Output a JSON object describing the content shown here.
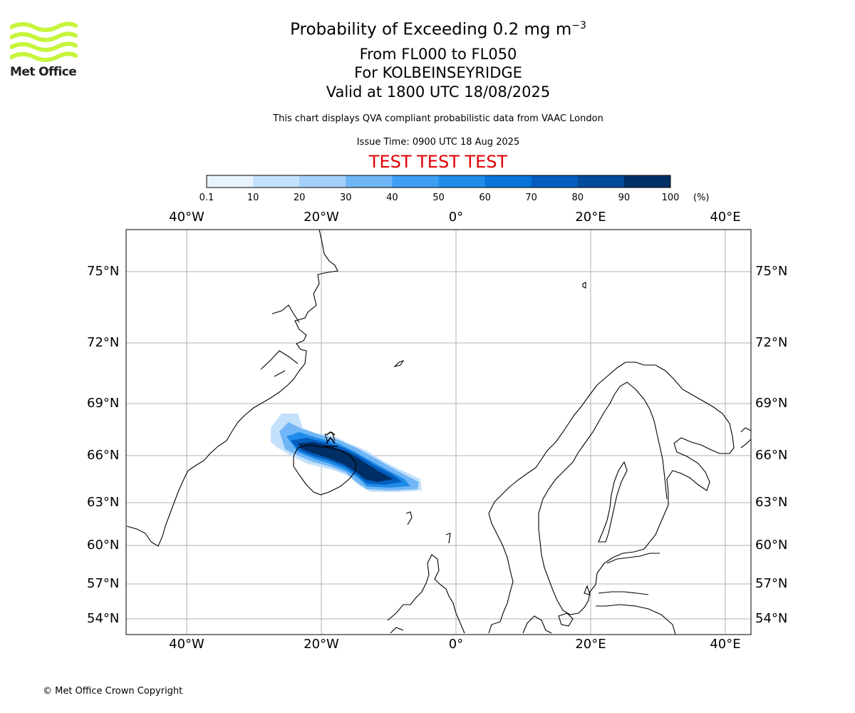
{
  "header": {
    "title_prefix": "Probability of Exceeding 0.2 mg m",
    "title_exponent": "−3",
    "flight_levels": "From FL000 to FL050",
    "volcano": "For KOLBEINSEYRIDGE",
    "valid_time": "Valid at 1800 UTC 18/08/2025",
    "description": "This chart displays QVA compliant probabilistic data from VAAC London",
    "issue_time": "Issue Time: 0900 UTC 18 Aug 2025",
    "test_banner": "TEST TEST TEST"
  },
  "logo": {
    "text": "Met Office",
    "color": "#c6f53c"
  },
  "colorbar": {
    "tick_labels": [
      "0.1",
      "10",
      "20",
      "30",
      "40",
      "50",
      "60",
      "70",
      "80",
      "90",
      "100"
    ],
    "unit": "(%)",
    "colors": [
      "#e8f3fe",
      "#c4e1fb",
      "#a3cff9",
      "#70b6f6",
      "#3d9ef3",
      "#1f8ce9",
      "#0874d9",
      "#035ebf",
      "#004b9c",
      "#002f66"
    ]
  },
  "map": {
    "lon_labels": [
      "40°W",
      "20°W",
      "0°",
      "20°E",
      "40°E"
    ],
    "lat_labels": [
      "75°N",
      "72°N",
      "69°N",
      "66°N",
      "63°N",
      "60°N",
      "57°N",
      "54°N"
    ]
  },
  "footer": {
    "copyright": "© Met Office Crown Copyright"
  }
}
